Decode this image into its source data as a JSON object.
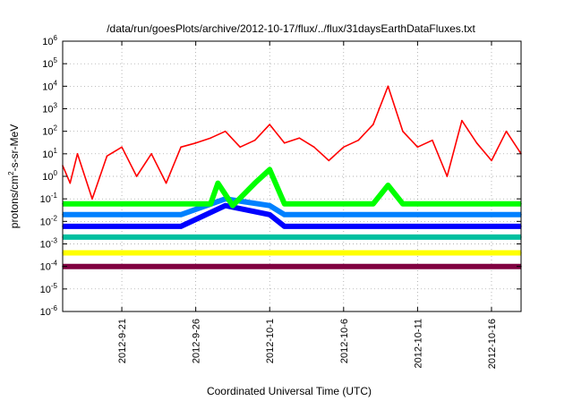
{
  "chart_data": {
    "type": "line",
    "title": "/data/run/goesPlots/archive/2012-10-17/flux/../flux/31daysEarthDataFluxes.txt",
    "xlabel": "Coordinated Universal Time (UTC)",
    "ylabel": {
      "pre": "protons/cm",
      "sup": "2",
      "post": "-s-sr-MeV"
    },
    "yscale": "log",
    "ylim": [
      1e-06,
      1000000.0
    ],
    "xlim": [
      "2012-09-17",
      "2012-10-18"
    ],
    "grid": true,
    "y_ticks": [
      {
        "base": "10",
        "exp": "-6",
        "value": 1e-06
      },
      {
        "base": "10",
        "exp": "-5",
        "value": 1e-05
      },
      {
        "base": "10",
        "exp": "-4",
        "value": 0.0001
      },
      {
        "base": "10",
        "exp": "-3",
        "value": 0.001
      },
      {
        "base": "10",
        "exp": "-2",
        "value": 0.01
      },
      {
        "base": "10",
        "exp": "-1",
        "value": 0.1
      },
      {
        "base": "10",
        "exp": "0",
        "value": 1
      },
      {
        "base": "10",
        "exp": "1",
        "value": 10
      },
      {
        "base": "10",
        "exp": "2",
        "value": 100
      },
      {
        "base": "10",
        "exp": "3",
        "value": 1000
      },
      {
        "base": "10",
        "exp": "4",
        "value": 10000
      },
      {
        "base": "10",
        "exp": "5",
        "value": 100000
      },
      {
        "base": "10",
        "exp": "6",
        "value": 1000000
      }
    ],
    "x_ticks": [
      {
        "label": "2012-9-21",
        "date": "2012-09-21"
      },
      {
        "label": "2012-9-26",
        "date": "2012-09-26"
      },
      {
        "label": "2012-10-1",
        "date": "2012-10-01"
      },
      {
        "label": "2012-10-6",
        "date": "2012-10-06"
      },
      {
        "label": "2012-10-11",
        "date": "2012-10-11"
      },
      {
        "label": "2012-10-16",
        "date": "2012-10-16"
      }
    ],
    "series": [
      {
        "color": "#800040",
        "x": [
          "2012-09-17",
          "2012-09-25",
          "2012-10-03",
          "2012-10-11",
          "2012-10-18"
        ],
        "y": [
          0.0001,
          0.0001,
          0.0001,
          0.0001,
          0.0001
        ]
      },
      {
        "color": "#ffff00",
        "x": [
          "2012-09-17",
          "2012-09-25",
          "2012-10-03",
          "2012-10-11",
          "2012-10-18"
        ],
        "y": [
          0.0004,
          0.0004,
          0.0004,
          0.0004,
          0.0004
        ]
      },
      {
        "color": "#00c0a0",
        "x": [
          "2012-09-17",
          "2012-09-25",
          "2012-10-03",
          "2012-10-11",
          "2012-10-18"
        ],
        "y": [
          0.002,
          0.002,
          0.002,
          0.002,
          0.002
        ]
      },
      {
        "color": "#0000ff",
        "x": [
          "2012-09-17",
          "2012-09-25",
          "2012-09-28",
          "2012-10-01",
          "2012-10-02",
          "2012-10-11",
          "2012-10-18"
        ],
        "y": [
          0.006,
          0.006,
          0.05,
          0.02,
          0.006,
          0.006,
          0.006
        ]
      },
      {
        "color": "#0080ff",
        "x": [
          "2012-09-17",
          "2012-09-25",
          "2012-09-28",
          "2012-10-01",
          "2012-10-02",
          "2012-10-11",
          "2012-10-18"
        ],
        "y": [
          0.02,
          0.02,
          0.1,
          0.05,
          0.02,
          0.02,
          0.02
        ]
      },
      {
        "color": "#00ff00",
        "x": [
          "2012-09-17",
          "2012-09-27",
          "2012-09-27.5",
          "2012-09-28.5",
          "2012-09-30",
          "2012-10-01",
          "2012-10-02",
          "2012-10-08",
          "2012-10-09",
          "2012-10-10",
          "2012-10-18"
        ],
        "y": [
          0.06,
          0.06,
          0.5,
          0.05,
          0.5,
          2,
          0.06,
          0.06,
          0.4,
          0.06,
          0.06
        ]
      },
      {
        "color": "#ff0000",
        "x": [
          "2012-09-17",
          "2012-09-17.5",
          "2012-09-18",
          "2012-09-19",
          "2012-09-20",
          "2012-09-21",
          "2012-09-22",
          "2012-09-23",
          "2012-09-24",
          "2012-09-25",
          "2012-09-26",
          "2012-09-27",
          "2012-09-28",
          "2012-09-29",
          "2012-09-30",
          "2012-10-01",
          "2012-10-02",
          "2012-10-03",
          "2012-10-04",
          "2012-10-05",
          "2012-10-06",
          "2012-10-07",
          "2012-10-08",
          "2012-10-09",
          "2012-10-10",
          "2012-10-11",
          "2012-10-12",
          "2012-10-13",
          "2012-10-14",
          "2012-10-15",
          "2012-10-16",
          "2012-10-17",
          "2012-10-18"
        ],
        "y": [
          3,
          0.5,
          10,
          0.1,
          8,
          20,
          1,
          10,
          0.5,
          20,
          30,
          50,
          100,
          20,
          40,
          200,
          30,
          50,
          20,
          5,
          20,
          40,
          200,
          10000,
          100,
          20,
          40,
          1,
          300,
          30,
          5,
          100,
          10
        ]
      }
    ]
  }
}
